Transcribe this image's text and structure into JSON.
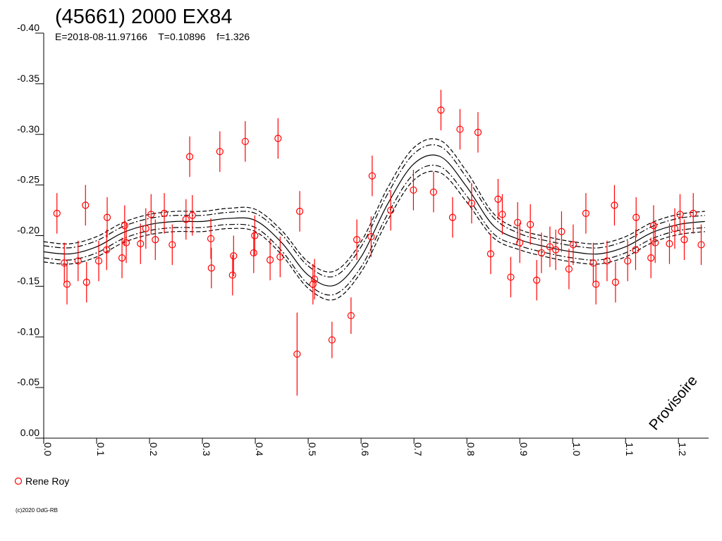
{
  "chart_data": {
    "type": "scatter",
    "title": "(45661) 2000 EX84",
    "subtitle": "E=2018-08-11.97166    T=0.10896    f=1.326",
    "watermark": "Provisoire",
    "footer": "(c)2020 OdG-RB",
    "xlim": [
      0,
      1.257
    ],
    "ylim": [
      0,
      -0.4
    ],
    "xticks": [
      {
        "value": 0,
        "label": "0.0"
      },
      0.1,
      0.2,
      0.3,
      0.4,
      0.5,
      0.6,
      0.7,
      0.8,
      0.9,
      {
        "value": 1,
        "label": "1.0"
      },
      1.1,
      1.2
    ],
    "yticks": [
      {
        "value": 0,
        "label": "0.00"
      },
      -0.05,
      {
        "value": -0.1,
        "label": "-0.10"
      },
      -0.15,
      {
        "value": -0.2,
        "label": "-0.20"
      },
      -0.25,
      {
        "value": -0.3,
        "label": "-0.30"
      },
      -0.35,
      {
        "value": -0.4,
        "label": "-0.40"
      }
    ],
    "grid": false,
    "legend": "bottom-left",
    "series": [
      {
        "name": "Rene Roy",
        "color": "#ff0000",
        "x": [
          0.025,
          0.039,
          0.044,
          0.065,
          0.079,
          0.081,
          0.104,
          0.119,
          0.12,
          0.148,
          0.153,
          0.156,
          0.183,
          0.193,
          0.203,
          0.211,
          0.228,
          0.243,
          0.269,
          0.276,
          0.281,
          0.316,
          0.317,
          0.333,
          0.357,
          0.359,
          0.381,
          0.397,
          0.399,
          0.428,
          0.443,
          0.447,
          0.479,
          0.484,
          0.509,
          0.512,
          0.545,
          0.581,
          0.592,
          0.619,
          0.621,
          0.656,
          0.699,
          0.737,
          0.751,
          0.773,
          0.787,
          0.809,
          0.821,
          0.845,
          0.859,
          0.867,
          0.883,
          0.896,
          0.9,
          0.92,
          0.932,
          0.941,
          0.957,
          0.968,
          0.979,
          0.993,
          1.001,
          1.025,
          1.039,
          1.044,
          1.065,
          1.079,
          1.081,
          1.104,
          1.119,
          1.12,
          1.148,
          1.153,
          1.156,
          1.183,
          1.193,
          1.203,
          1.211,
          1.228,
          1.243
        ],
        "values": [
          -0.222,
          -0.173,
          -0.152,
          -0.175,
          -0.23,
          -0.154,
          -0.175,
          -0.186,
          -0.218,
          -0.178,
          -0.21,
          -0.193,
          -0.192,
          -0.207,
          -0.221,
          -0.196,
          -0.222,
          -0.191,
          -0.216,
          -0.278,
          -0.22,
          -0.197,
          -0.168,
          -0.283,
          -0.161,
          -0.18,
          -0.293,
          -0.183,
          -0.2,
          -0.176,
          -0.296,
          -0.179,
          -0.083,
          -0.224,
          -0.152,
          -0.157,
          -0.097,
          -0.121,
          -0.196,
          -0.199,
          -0.259,
          -0.225,
          -0.245,
          -0.243,
          -0.324,
          -0.218,
          -0.305,
          -0.232,
          -0.302,
          -0.182,
          -0.236,
          -0.221,
          -0.159,
          -0.213,
          -0.193,
          -0.211,
          -0.156,
          -0.183,
          -0.189,
          -0.186,
          -0.204,
          -0.167,
          -0.191,
          -0.222,
          -0.173,
          -0.152,
          -0.175,
          -0.23,
          -0.154,
          -0.175,
          -0.186,
          -0.218,
          -0.178,
          -0.21,
          -0.193,
          -0.192,
          -0.207,
          -0.221,
          -0.196,
          -0.222,
          -0.191
        ],
        "errors": [
          0.02,
          0.02,
          0.02,
          0.02,
          0.02,
          0.02,
          0.02,
          0.02,
          0.02,
          0.02,
          0.02,
          0.02,
          0.02,
          0.02,
          0.02,
          0.02,
          0.02,
          0.02,
          0.02,
          0.02,
          0.02,
          0.02,
          0.02,
          0.02,
          0.02,
          0.02,
          0.02,
          0.02,
          0.02,
          0.02,
          0.02,
          0.02,
          0.041,
          0.02,
          0.02,
          0.02,
          0.018,
          0.018,
          0.02,
          0.02,
          0.02,
          0.02,
          0.02,
          0.02,
          0.02,
          0.02,
          0.02,
          0.02,
          0.02,
          0.02,
          0.02,
          0.02,
          0.02,
          0.02,
          0.02,
          0.02,
          0.02,
          0.02,
          0.02,
          0.02,
          0.02,
          0.02,
          0.02,
          0.02,
          0.02,
          0.02,
          0.02,
          0.02,
          0.02,
          0.02,
          0.02,
          0.02,
          0.02,
          0.02,
          0.02,
          0.02,
          0.02,
          0.02,
          0.02,
          0.02,
          0.02
        ]
      }
    ],
    "curves": {
      "x": [
        0,
        0.05,
        0.1,
        0.15,
        0.2,
        0.25,
        0.3,
        0.35,
        0.4,
        0.45,
        0.5,
        0.55,
        0.6,
        0.65,
        0.7,
        0.75,
        0.8,
        0.85,
        0.9,
        0.95,
        1,
        1.05,
        1.1,
        1.15,
        1.2,
        1.25
      ],
      "lines": [
        {
          "style": "solid",
          "values": [
            -0.184,
            -0.182,
            -0.189,
            -0.203,
            -0.211,
            -0.214,
            -0.214,
            -0.217,
            -0.215,
            -0.193,
            -0.161,
            -0.151,
            -0.179,
            -0.231,
            -0.271,
            -0.278,
            -0.248,
            -0.21,
            -0.196,
            -0.189,
            -0.184,
            -0.182,
            -0.189,
            -0.203,
            -0.211,
            -0.214
          ]
        },
        {
          "style": "dashed",
          "values": [
            -0.194,
            -0.192,
            -0.199,
            -0.213,
            -0.221,
            -0.224,
            -0.224,
            -0.227,
            -0.226,
            -0.205,
            -0.174,
            -0.165,
            -0.194,
            -0.247,
            -0.287,
            -0.294,
            -0.263,
            -0.222,
            -0.206,
            -0.199,
            -0.194,
            -0.192,
            -0.199,
            -0.213,
            -0.221,
            -0.224
          ]
        },
        {
          "style": "dashed",
          "values": [
            -0.174,
            -0.172,
            -0.179,
            -0.193,
            -0.201,
            -0.204,
            -0.204,
            -0.207,
            -0.204,
            -0.181,
            -0.148,
            -0.137,
            -0.164,
            -0.215,
            -0.255,
            -0.262,
            -0.233,
            -0.198,
            -0.186,
            -0.179,
            -0.174,
            -0.172,
            -0.179,
            -0.193,
            -0.201,
            -0.204
          ]
        },
        {
          "style": "dashdot",
          "values": [
            -0.19,
            -0.188,
            -0.195,
            -0.209,
            -0.217,
            -0.22,
            -0.22,
            -0.223,
            -0.222,
            -0.201,
            -0.17,
            -0.16,
            -0.189,
            -0.241,
            -0.281,
            -0.288,
            -0.257,
            -0.218,
            -0.202,
            -0.195,
            -0.19,
            -0.188,
            -0.195,
            -0.209,
            -0.217,
            -0.22
          ]
        },
        {
          "style": "dashdot",
          "values": [
            -0.178,
            -0.176,
            -0.183,
            -0.197,
            -0.205,
            -0.208,
            -0.208,
            -0.211,
            -0.208,
            -0.185,
            -0.152,
            -0.142,
            -0.169,
            -0.221,
            -0.261,
            -0.268,
            -0.239,
            -0.202,
            -0.19,
            -0.183,
            -0.178,
            -0.176,
            -0.183,
            -0.197,
            -0.205,
            -0.208
          ]
        }
      ]
    }
  }
}
